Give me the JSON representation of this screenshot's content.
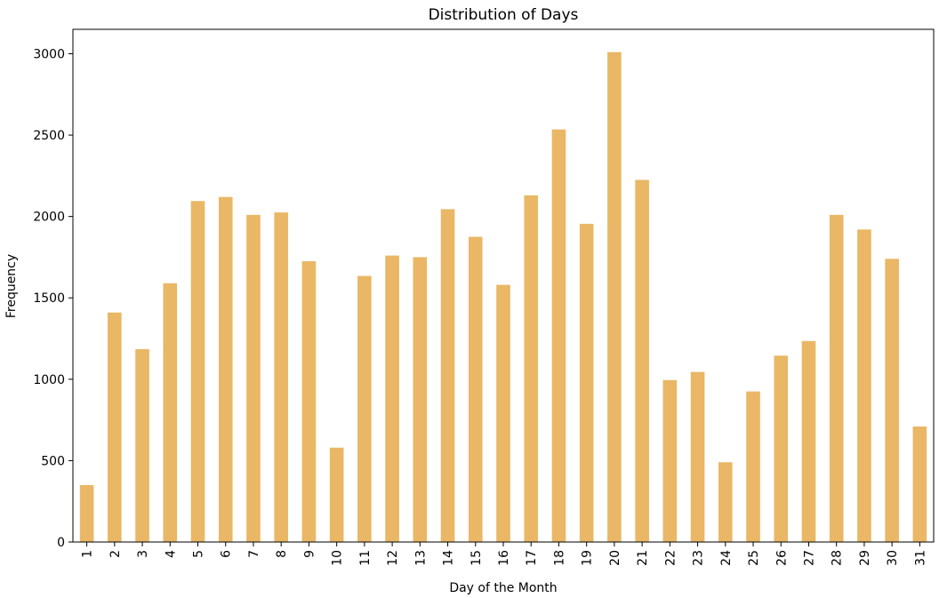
{
  "chart_data": {
    "type": "bar",
    "title": "Distribution of Days",
    "xlabel": "Day of the Month",
    "ylabel": "Frequency",
    "ylim": [
      0,
      3150
    ],
    "yticks": [
      0,
      500,
      1000,
      1500,
      2000,
      2500,
      3000
    ],
    "grid": false,
    "bar_color": "#E9B765",
    "categories": [
      "1",
      "2",
      "3",
      "4",
      "5",
      "6",
      "7",
      "8",
      "9",
      "10",
      "11",
      "12",
      "13",
      "14",
      "15",
      "16",
      "17",
      "18",
      "19",
      "20",
      "21",
      "22",
      "23",
      "24",
      "25",
      "26",
      "27",
      "28",
      "29",
      "30",
      "31"
    ],
    "values": [
      350,
      1410,
      1185,
      1590,
      2095,
      2120,
      2010,
      2025,
      1725,
      580,
      1635,
      1760,
      1750,
      2045,
      1875,
      1580,
      2130,
      2535,
      1955,
      3010,
      2225,
      995,
      1045,
      490,
      925,
      1145,
      1235,
      2010,
      1920,
      1740,
      710
    ]
  }
}
